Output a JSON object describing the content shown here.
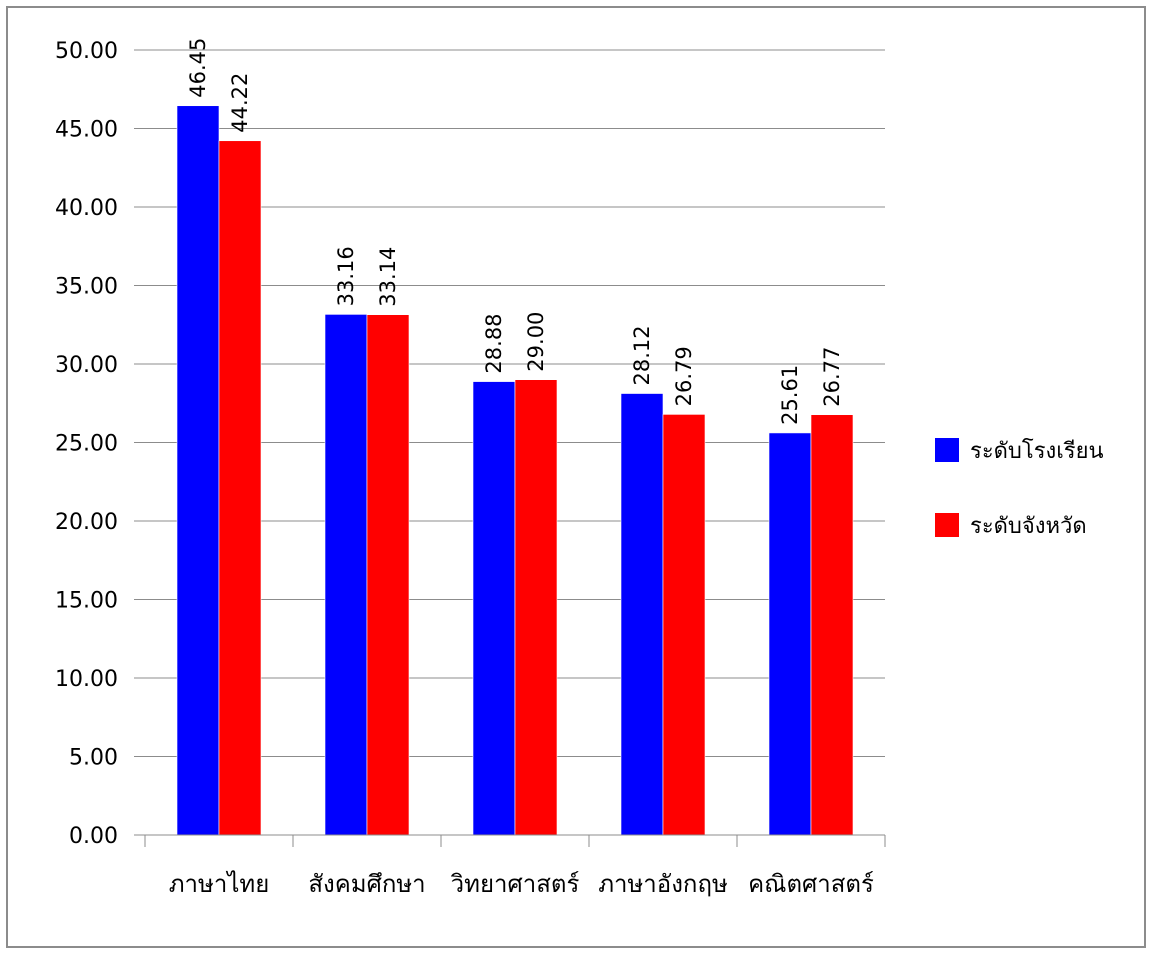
{
  "chart_data": {
    "type": "bar",
    "categories": [
      "ภาษาไทย",
      "สังคมศึกษา",
      "วิทยาศาสตร์",
      "ภาษาอังกฤษ",
      "คณิตศาสตร์"
    ],
    "series": [
      {
        "name": "ระดับโรงเรียน",
        "color": "#0000ff",
        "values": [
          46.45,
          33.16,
          28.88,
          28.12,
          25.61
        ]
      },
      {
        "name": "ระดับจังหวัด",
        "color": "#ff0000",
        "values": [
          44.22,
          33.14,
          29.0,
          26.79,
          26.77
        ]
      }
    ],
    "ylim": [
      0,
      50
    ],
    "yticks": [
      "0.00",
      "5.00",
      "10.00",
      "15.00",
      "20.00",
      "25.00",
      "30.00",
      "35.00",
      "40.00",
      "45.00",
      "50.00"
    ],
    "data_labels": [
      [
        "46.45",
        "33.16",
        "28.88",
        "28.12",
        "25.61"
      ],
      [
        "44.22",
        "33.14",
        "29.00",
        "26.79",
        "26.77"
      ]
    ],
    "grid": true,
    "legend": "right"
  }
}
